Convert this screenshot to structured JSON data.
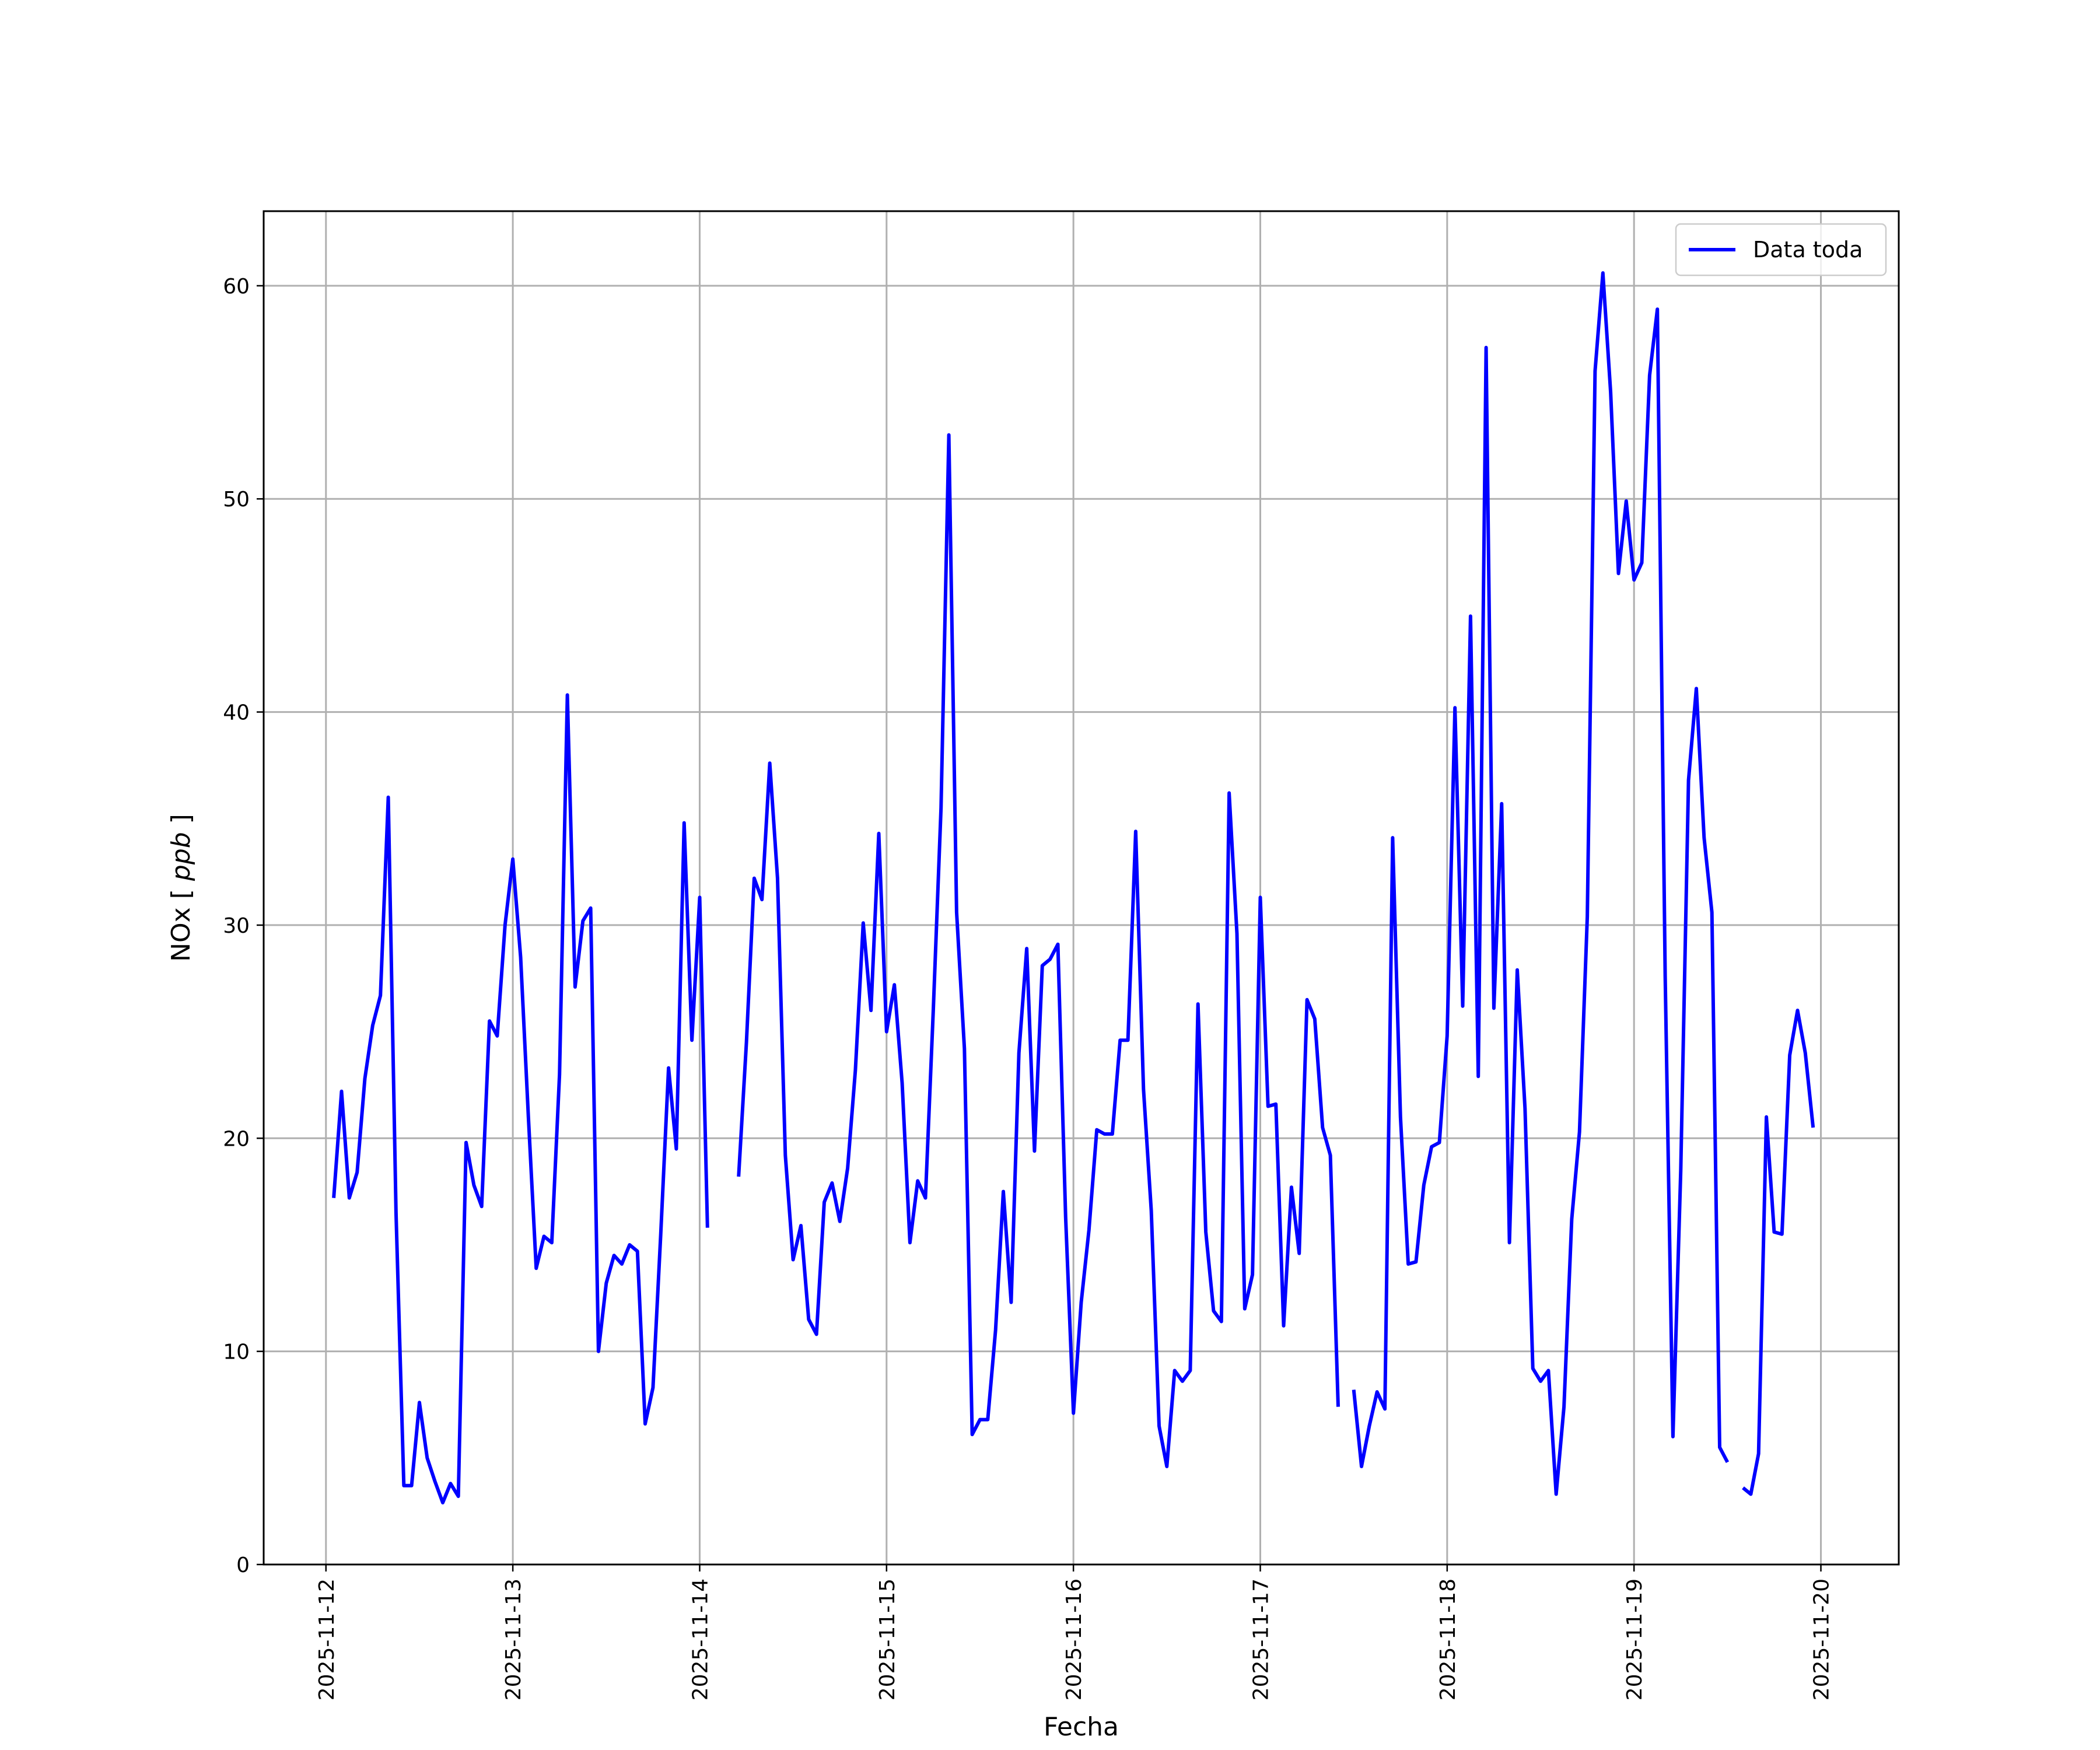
{
  "chart_data": {
    "type": "line",
    "title": "",
    "xlabel": "Fecha",
    "ylabel": "NOx [ppb]",
    "ylabel_main": "NOx",
    "ylabel_unit": "ppb",
    "x_start": "2025-11-12",
    "x_end": "2025-11-20",
    "xlim": [
      "2025-11-11T16:00",
      "2025-11-20T10:00"
    ],
    "ylim": [
      0,
      63.5
    ],
    "x_ticks": [
      "2025-11-12",
      "2025-11-13",
      "2025-11-14",
      "2025-11-15",
      "2025-11-16",
      "2025-11-17",
      "2025-11-18",
      "2025-11-19",
      "2025-11-20"
    ],
    "y_ticks": [
      0,
      10,
      20,
      30,
      40,
      50,
      60
    ],
    "grid": true,
    "legend_position": "top-right",
    "series": [
      {
        "name": "Data toda",
        "color": "#0000ff",
        "points": [
          [
            "2025-11-12T01:00",
            17.2
          ],
          [
            "2025-11-12T02:00",
            22.2
          ],
          [
            "2025-11-12T03:00",
            17.2
          ],
          [
            "2025-11-12T04:00",
            18.4
          ],
          [
            "2025-11-12T05:00",
            22.8
          ],
          [
            "2025-11-12T06:00",
            25.3
          ],
          [
            "2025-11-12T07:00",
            26.7
          ],
          [
            "2025-11-12T08:00",
            36.0
          ],
          [
            "2025-11-12T09:00",
            16.5
          ],
          [
            "2025-11-12T10:00",
            3.7
          ],
          [
            "2025-11-12T11:00",
            3.7
          ],
          [
            "2025-11-12T12:00",
            7.6
          ],
          [
            "2025-11-12T13:00",
            5.0
          ],
          [
            "2025-11-12T14:00",
            3.9
          ],
          [
            "2025-11-12T15:00",
            2.9
          ],
          [
            "2025-11-12T16:00",
            3.8
          ],
          [
            "2025-11-12T17:00",
            3.2
          ],
          [
            "2025-11-12T18:00",
            19.8
          ],
          [
            "2025-11-12T19:00",
            17.8
          ],
          [
            "2025-11-12T20:00",
            16.8
          ],
          [
            "2025-11-12T21:00",
            25.5
          ],
          [
            "2025-11-12T22:00",
            24.8
          ],
          [
            "2025-11-12T23:00",
            30.0
          ],
          [
            "2025-11-13T00:00",
            33.1
          ],
          [
            "2025-11-13T01:00",
            28.5
          ],
          [
            "2025-11-13T02:00",
            21.0
          ],
          [
            "2025-11-13T03:00",
            13.9
          ],
          [
            "2025-11-13T04:00",
            15.4
          ],
          [
            "2025-11-13T05:00",
            15.1
          ],
          [
            "2025-11-13T06:00",
            23.0
          ],
          [
            "2025-11-13T07:00",
            40.8
          ],
          [
            "2025-11-13T08:00",
            27.1
          ],
          [
            "2025-11-13T09:00",
            30.2
          ],
          [
            "2025-11-13T10:00",
            30.8
          ],
          [
            "2025-11-13T11:00",
            10.0
          ],
          [
            "2025-11-13T12:00",
            13.2
          ],
          [
            "2025-11-13T13:00",
            14.5
          ],
          [
            "2025-11-13T14:00",
            14.1
          ],
          [
            "2025-11-13T15:00",
            15.0
          ],
          [
            "2025-11-13T16:00",
            14.7
          ],
          [
            "2025-11-13T17:00",
            6.6
          ],
          [
            "2025-11-13T18:00",
            8.3
          ],
          [
            "2025-11-13T19:00",
            15.5
          ],
          [
            "2025-11-13T20:00",
            23.3
          ],
          [
            "2025-11-13T21:00",
            19.5
          ],
          [
            "2025-11-13T22:00",
            34.8
          ],
          [
            "2025-11-13T23:00",
            24.6
          ],
          [
            "2025-11-14T00:00",
            31.3
          ],
          [
            "2025-11-14T01:00",
            15.8
          ],
          null,
          [
            "2025-11-14T05:00",
            18.2
          ],
          [
            "2025-11-14T06:00",
            24.5
          ],
          [
            "2025-11-14T07:00",
            32.2
          ],
          [
            "2025-11-14T08:00",
            31.2
          ],
          [
            "2025-11-14T09:00",
            37.6
          ],
          [
            "2025-11-14T10:00",
            32.2
          ],
          [
            "2025-11-14T11:00",
            19.2
          ],
          [
            "2025-11-14T12:00",
            14.3
          ],
          [
            "2025-11-14T13:00",
            15.9
          ],
          [
            "2025-11-14T14:00",
            11.5
          ],
          [
            "2025-11-14T15:00",
            10.8
          ],
          [
            "2025-11-14T16:00",
            17.0
          ],
          [
            "2025-11-14T17:00",
            17.9
          ],
          [
            "2025-11-14T18:00",
            16.1
          ],
          [
            "2025-11-14T19:00",
            18.6
          ],
          [
            "2025-11-14T20:00",
            23.2
          ],
          [
            "2025-11-14T21:00",
            30.1
          ],
          [
            "2025-11-14T22:00",
            26.0
          ],
          [
            "2025-11-14T23:00",
            34.3
          ],
          [
            "2025-11-15T00:00",
            25.0
          ],
          [
            "2025-11-15T01:00",
            27.2
          ],
          [
            "2025-11-15T02:00",
            22.6
          ],
          [
            "2025-11-15T03:00",
            15.1
          ],
          [
            "2025-11-15T04:00",
            18.0
          ],
          [
            "2025-11-15T05:00",
            17.2
          ],
          [
            "2025-11-15T06:00",
            26.0
          ],
          [
            "2025-11-15T07:00",
            35.5
          ],
          [
            "2025-11-15T08:00",
            53.0
          ],
          [
            "2025-11-15T09:00",
            30.6
          ],
          [
            "2025-11-15T10:00",
            24.2
          ],
          [
            "2025-11-15T11:00",
            6.1
          ],
          [
            "2025-11-15T12:00",
            6.8
          ],
          [
            "2025-11-15T13:00",
            6.8
          ],
          [
            "2025-11-15T14:00",
            11.0
          ],
          [
            "2025-11-15T15:00",
            17.5
          ],
          [
            "2025-11-15T16:00",
            12.3
          ],
          [
            "2025-11-15T17:00",
            24.0
          ],
          [
            "2025-11-15T18:00",
            28.9
          ],
          [
            "2025-11-15T19:00",
            19.4
          ],
          [
            "2025-11-15T20:00",
            28.1
          ],
          [
            "2025-11-15T21:00",
            28.4
          ],
          [
            "2025-11-15T22:00",
            29.1
          ],
          [
            "2025-11-15T23:00",
            16.3
          ],
          [
            "2025-11-16T00:00",
            7.1
          ],
          [
            "2025-11-16T01:00",
            12.3
          ],
          [
            "2025-11-16T02:00",
            15.7
          ],
          [
            "2025-11-16T03:00",
            20.4
          ],
          [
            "2025-11-16T04:00",
            20.2
          ],
          [
            "2025-11-16T05:00",
            20.2
          ],
          [
            "2025-11-16T06:00",
            24.6
          ],
          [
            "2025-11-16T07:00",
            24.6
          ],
          [
            "2025-11-16T08:00",
            34.4
          ],
          [
            "2025-11-16T09:00",
            22.3
          ],
          [
            "2025-11-16T10:00",
            16.6
          ],
          [
            "2025-11-16T11:00",
            6.5
          ],
          [
            "2025-11-16T12:00",
            4.6
          ],
          [
            "2025-11-16T13:00",
            9.1
          ],
          [
            "2025-11-16T14:00",
            8.6
          ],
          [
            "2025-11-16T15:00",
            9.1
          ],
          [
            "2025-11-16T16:00",
            26.3
          ],
          [
            "2025-11-16T17:00",
            15.6
          ],
          [
            "2025-11-16T18:00",
            11.9
          ],
          [
            "2025-11-16T19:00",
            11.4
          ],
          [
            "2025-11-16T20:00",
            36.2
          ],
          [
            "2025-11-16T21:00",
            29.6
          ],
          [
            "2025-11-16T22:00",
            12.0
          ],
          [
            "2025-11-16T23:00",
            13.6
          ],
          [
            "2025-11-17T00:00",
            31.3
          ],
          [
            "2025-11-17T01:00",
            21.5
          ],
          [
            "2025-11-17T02:00",
            21.6
          ],
          [
            "2025-11-17T03:00",
            11.2
          ],
          [
            "2025-11-17T04:00",
            17.7
          ],
          [
            "2025-11-17T05:00",
            14.6
          ],
          [
            "2025-11-17T06:00",
            26.5
          ],
          [
            "2025-11-17T07:00",
            25.6
          ],
          [
            "2025-11-17T08:00",
            20.5
          ],
          [
            "2025-11-17T09:00",
            19.2
          ],
          [
            "2025-11-17T10:00",
            7.4
          ],
          null,
          [
            "2025-11-17T12:00",
            8.2
          ],
          [
            "2025-11-17T13:00",
            4.6
          ],
          [
            "2025-11-17T14:00",
            6.5
          ],
          [
            "2025-11-17T15:00",
            8.1
          ],
          [
            "2025-11-17T16:00",
            7.3
          ],
          [
            "2025-11-17T17:00",
            34.1
          ],
          [
            "2025-11-17T18:00",
            21.0
          ],
          [
            "2025-11-17T19:00",
            14.1
          ],
          [
            "2025-11-17T20:00",
            14.2
          ],
          [
            "2025-11-17T21:00",
            17.8
          ],
          [
            "2025-11-17T22:00",
            19.6
          ],
          [
            "2025-11-17T23:00",
            19.8
          ],
          [
            "2025-11-18T00:00",
            24.8
          ],
          [
            "2025-11-18T01:00",
            40.2
          ],
          [
            "2025-11-18T02:00",
            26.2
          ],
          [
            "2025-11-18T03:00",
            44.5
          ],
          [
            "2025-11-18T04:00",
            22.9
          ],
          [
            "2025-11-18T05:00",
            57.1
          ],
          [
            "2025-11-18T06:00",
            26.1
          ],
          [
            "2025-11-18T07:00",
            35.7
          ],
          [
            "2025-11-18T08:00",
            15.1
          ],
          [
            "2025-11-18T09:00",
            27.9
          ],
          [
            "2025-11-18T10:00",
            21.4
          ],
          [
            "2025-11-18T11:00",
            9.2
          ],
          [
            "2025-11-18T12:00",
            8.6
          ],
          [
            "2025-11-18T13:00",
            9.1
          ],
          [
            "2025-11-18T14:00",
            3.3
          ],
          [
            "2025-11-18T15:00",
            7.4
          ],
          [
            "2025-11-18T16:00",
            16.2
          ],
          [
            "2025-11-18T17:00",
            20.3
          ],
          [
            "2025-11-18T18:00",
            30.4
          ],
          [
            "2025-11-18T19:00",
            56.0
          ],
          [
            "2025-11-18T20:00",
            60.6
          ],
          [
            "2025-11-18T21:00",
            55.0
          ],
          [
            "2025-11-18T22:00",
            46.5
          ],
          [
            "2025-11-18T23:00",
            49.9
          ],
          [
            "2025-11-19T00:00",
            46.2
          ],
          [
            "2025-11-19T01:00",
            47.0
          ],
          [
            "2025-11-19T02:00",
            55.8
          ],
          [
            "2025-11-19T03:00",
            58.9
          ],
          [
            "2025-11-19T04:00",
            27.6
          ],
          [
            "2025-11-19T05:00",
            6.0
          ],
          [
            "2025-11-19T06:00",
            18.5
          ],
          [
            "2025-11-19T07:00",
            36.8
          ],
          [
            "2025-11-19T08:00",
            41.1
          ],
          [
            "2025-11-19T09:00",
            34.1
          ],
          [
            "2025-11-19T10:00",
            30.6
          ],
          [
            "2025-11-19T11:00",
            5.5
          ],
          [
            "2025-11-19T12:00",
            4.8
          ],
          null,
          [
            "2025-11-19T14:00",
            3.6
          ],
          [
            "2025-11-19T15:00",
            3.3
          ],
          [
            "2025-11-19T16:00",
            5.2
          ],
          [
            "2025-11-19T17:00",
            21.0
          ],
          [
            "2025-11-19T18:00",
            15.6
          ],
          [
            "2025-11-19T19:00",
            15.5
          ],
          [
            "2025-11-19T20:00",
            23.9
          ],
          [
            "2025-11-19T21:00",
            26.0
          ],
          [
            "2025-11-19T22:00",
            24.0
          ],
          [
            "2025-11-19T23:00",
            20.5
          ]
        ]
      }
    ]
  }
}
